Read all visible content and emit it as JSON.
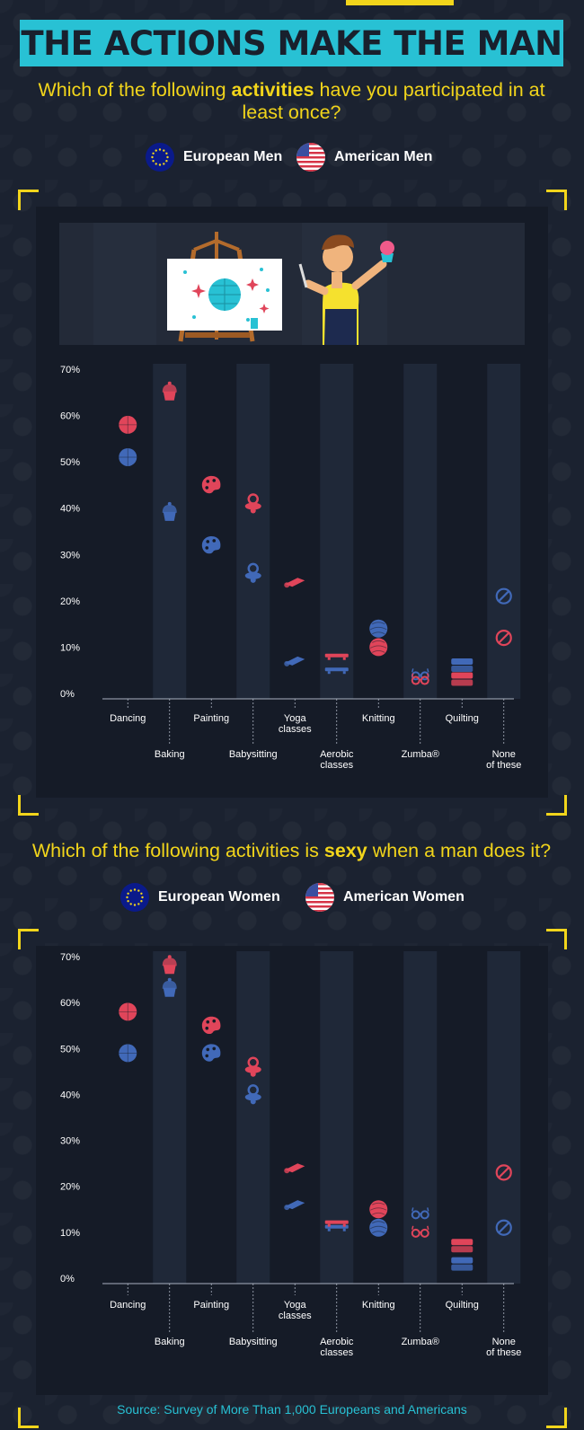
{
  "title": "THE ACTIONS MAKE THE MAN",
  "question1": {
    "pre": "Which of the following ",
    "em": "activities",
    "post": " have you participated in at least once?"
  },
  "question2": {
    "pre": "Which of the following activities is ",
    "em": "sexy",
    "post": " when a man does it?"
  },
  "legend1": {
    "eu": "European Men",
    "us": "American Men"
  },
  "legend2": {
    "eu": "European Women",
    "us": "American Women"
  },
  "colors": {
    "eu": "#4169b8",
    "us": "#e0455a",
    "accent": "#f2d51b",
    "banner": "#28c1d4"
  },
  "source": "Source: Survey of More Than 1,000 Europeans and Americans",
  "chart_data": [
    {
      "type": "scatter",
      "categories": [
        "Dancing",
        "Baking",
        "Painting",
        "Babysitting",
        "Yoga classes",
        "Aerobic classes",
        "Knitting",
        "Zumba®",
        "Quilting",
        "None of these"
      ],
      "category_lines": [
        [
          "Dancing"
        ],
        [
          "Baking"
        ],
        [
          "Painting"
        ],
        [
          "Babysitting"
        ],
        [
          "Yoga",
          "classes"
        ],
        [
          "Aerobic",
          "classes"
        ],
        [
          "Knitting"
        ],
        [
          "Zumba®"
        ],
        [
          "Quilting"
        ],
        [
          "None",
          "of these"
        ]
      ],
      "icons": [
        "dancing-disco-ball",
        "baking-cupcake",
        "painting-palette",
        "babysitting-pacifier",
        "yoga-mat",
        "aerobic-step",
        "knitting-yarn",
        "zumba-glasses",
        "quilting-stack",
        "none-prohibited"
      ],
      "series": [
        {
          "name": "European Men",
          "values": [
            51,
            39,
            32,
            26,
            7,
            5,
            14,
            4,
            6,
            21
          ]
        },
        {
          "name": "American Men",
          "values": [
            58,
            65,
            45,
            41,
            24,
            8,
            10,
            3,
            3,
            12
          ]
        }
      ],
      "yticks": [
        "0%",
        "10%",
        "20%",
        "30%",
        "40%",
        "50%",
        "60%",
        "70%"
      ],
      "ylim": [
        0,
        70
      ],
      "xlabel": "",
      "ylabel": ""
    },
    {
      "type": "scatter",
      "categories": [
        "Dancing",
        "Baking",
        "Painting",
        "Babysitting",
        "Yoga classes",
        "Aerobic classes",
        "Knitting",
        "Zumba®",
        "Quilting",
        "None of these"
      ],
      "category_lines": [
        [
          "Dancing"
        ],
        [
          "Baking"
        ],
        [
          "Painting"
        ],
        [
          "Babysitting"
        ],
        [
          "Yoga",
          "classes"
        ],
        [
          "Aerobic",
          "classes"
        ],
        [
          "Knitting"
        ],
        [
          "Zumba®"
        ],
        [
          "Quilting"
        ],
        [
          "None",
          "of these"
        ]
      ],
      "icons": [
        "dancing-disco-ball",
        "baking-cupcake",
        "painting-palette",
        "babysitting-pacifier",
        "yoga-mat",
        "aerobic-step",
        "knitting-yarn",
        "zumba-glasses",
        "quilting-stack",
        "none-prohibited"
      ],
      "series": [
        {
          "name": "European Women",
          "values": [
            49,
            63,
            49,
            40,
            16,
            11,
            11,
            14,
            3,
            11
          ]
        },
        {
          "name": "American Women",
          "values": [
            58,
            68,
            55,
            46,
            24,
            12,
            15,
            10,
            7,
            23
          ]
        }
      ],
      "yticks": [
        "0%",
        "10%",
        "20%",
        "30%",
        "40%",
        "50%",
        "60%",
        "70%"
      ],
      "ylim": [
        0,
        70
      ],
      "xlabel": "",
      "ylabel": ""
    }
  ]
}
